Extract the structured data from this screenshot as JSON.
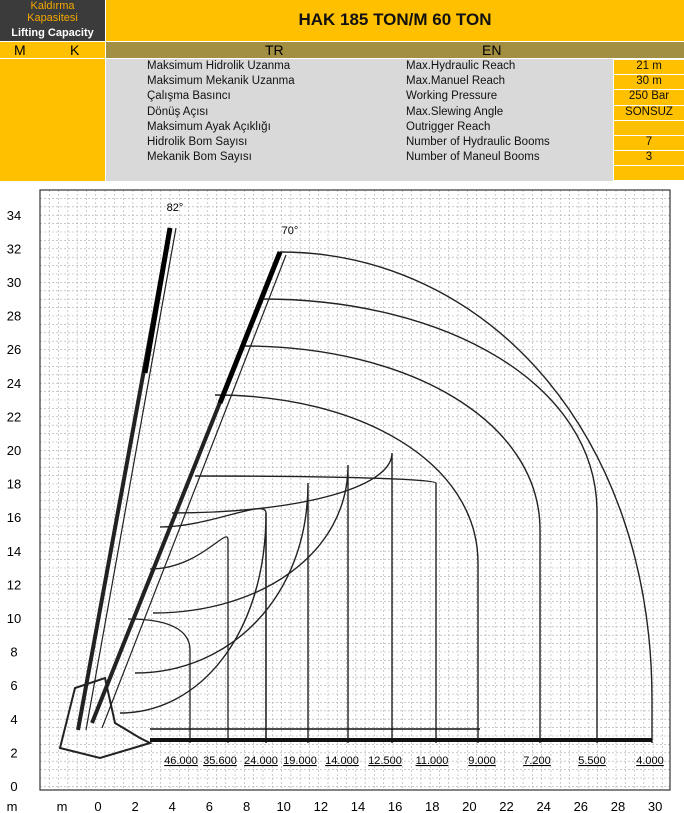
{
  "header": {
    "label_tr": "Kaldırma Kapasitesi",
    "label_en": "Lifting Capacity",
    "title": "HAK 185 TON/M 60 TON",
    "col_m": "M",
    "col_k": "K",
    "col_tr": "TR",
    "col_en": "EN"
  },
  "specs": [
    {
      "tr": "Maksimum Hidrolik Uzanma",
      "en": "Max.Hydraulic Reach",
      "value": "21 m"
    },
    {
      "tr": "Maksimum Mekanik Uzanma",
      "en": "Max.Manuel Reach",
      "value": "30 m"
    },
    {
      "tr": "Çalışma Basıncı",
      "en": "Working Pressure",
      "value": "250 Bar"
    },
    {
      "tr": "Dönüş Açısı",
      "en": "Max.Slewing Angle",
      "value": "SONSUZ"
    },
    {
      "tr": "Maksimum Ayak Açıklığı",
      "en": "Outrigger Reach"
    },
    {
      "tr": "Hidrolik Bom Sayısı",
      "en": "Number of Hydraulic Booms",
      "value": "7"
    },
    {
      "tr": "Mekanik Bom Sayısı",
      "en": "Number of Maneul Booms",
      "value": "3"
    }
  ],
  "load_chart": {
    "y_unit": "m",
    "x_unit": "m",
    "y_labels": [
      0,
      2,
      4,
      6,
      8,
      10,
      12,
      14,
      16,
      18,
      20,
      22,
      24,
      26,
      28,
      30,
      32,
      34
    ],
    "x_labels": [
      0,
      2,
      4,
      6,
      8,
      10,
      12,
      14,
      16,
      18,
      20,
      22,
      24,
      26,
      28,
      30
    ],
    "angles": [
      "82°",
      "70°"
    ],
    "capacities": [
      "46.000",
      "35.600",
      "24.000",
      "19.000",
      "14.000",
      "12.500",
      "11.000",
      "9.000",
      "7.200",
      "5.500",
      "4.000"
    ]
  }
}
